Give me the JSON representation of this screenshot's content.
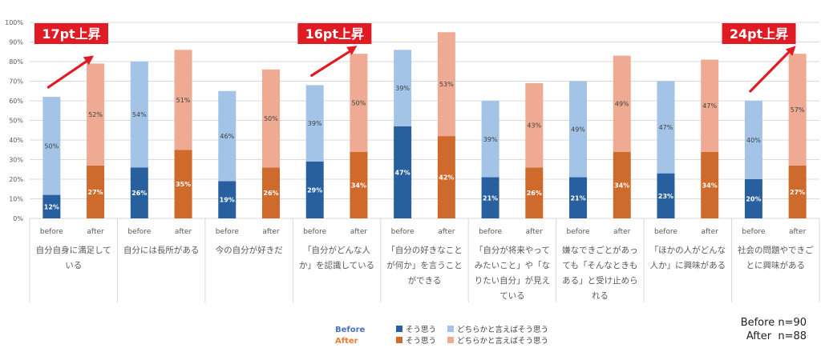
{
  "chart_data": {
    "type": "bar",
    "stacked": true,
    "grouped": true,
    "ylim": [
      0,
      100
    ],
    "y_ticks": [
      "0%",
      "10%",
      "20%",
      "30%",
      "40%",
      "50%",
      "60%",
      "70%",
      "80%",
      "90%",
      "100%"
    ],
    "grid": true,
    "group_labels": [
      "before",
      "after"
    ],
    "categories": [
      [
        "自分自身に満足して",
        "いる"
      ],
      [
        "自分には長所がある"
      ],
      [
        "今の自分が好きだ"
      ],
      [
        "「自分がどんな人",
        "か」を認識している"
      ],
      [
        "「自分の好きなこと",
        "が何か」を言うこと",
        "ができる"
      ],
      [
        "「自分が将来やって",
        "みたいこと」や「な",
        "りたい自分」が見え",
        "ている"
      ],
      [
        "嫌なできごとがあっ",
        "ても「そんなときも",
        "ある」と受け止めら",
        "れる"
      ],
      [
        "「ほかの人がどんな",
        "人か」に興味がある"
      ],
      [
        "社会の問題やできご",
        "とに興味がある"
      ]
    ],
    "before": {
      "strong": [
        12,
        26,
        19,
        29,
        47,
        21,
        21,
        23,
        20
      ],
      "weak": [
        50,
        54,
        46,
        39,
        39,
        39,
        49,
        47,
        40
      ]
    },
    "after": {
      "strong": [
        27,
        35,
        26,
        34,
        42,
        26,
        34,
        34,
        27
      ],
      "weak": [
        52,
        51,
        50,
        50,
        53,
        43,
        49,
        47,
        57
      ]
    },
    "callouts": [
      {
        "category_index": 0,
        "text": "17pt上昇"
      },
      {
        "category_index": 3,
        "text": "16pt上昇"
      },
      {
        "category_index": 8,
        "text": "24pt上昇"
      }
    ],
    "legend": {
      "before_label": "Before",
      "after_label": "After",
      "strong_label": "そう思う",
      "weak_label": "どちらかと言えばそう思う"
    }
  },
  "colors": {
    "before_strong": "#285f9f",
    "before_weak": "#a3c4e6",
    "after_strong": "#cf6a2d",
    "after_weak": "#eeaa92",
    "callout_red": "#e01b24",
    "grid": "#d9d9d9",
    "axis_text": "#595959",
    "before_legend": "#4472c4",
    "after_legend": "#ed7d31"
  },
  "notes": {
    "before_n": "Before n=90",
    "after_n": "After  n=88"
  }
}
